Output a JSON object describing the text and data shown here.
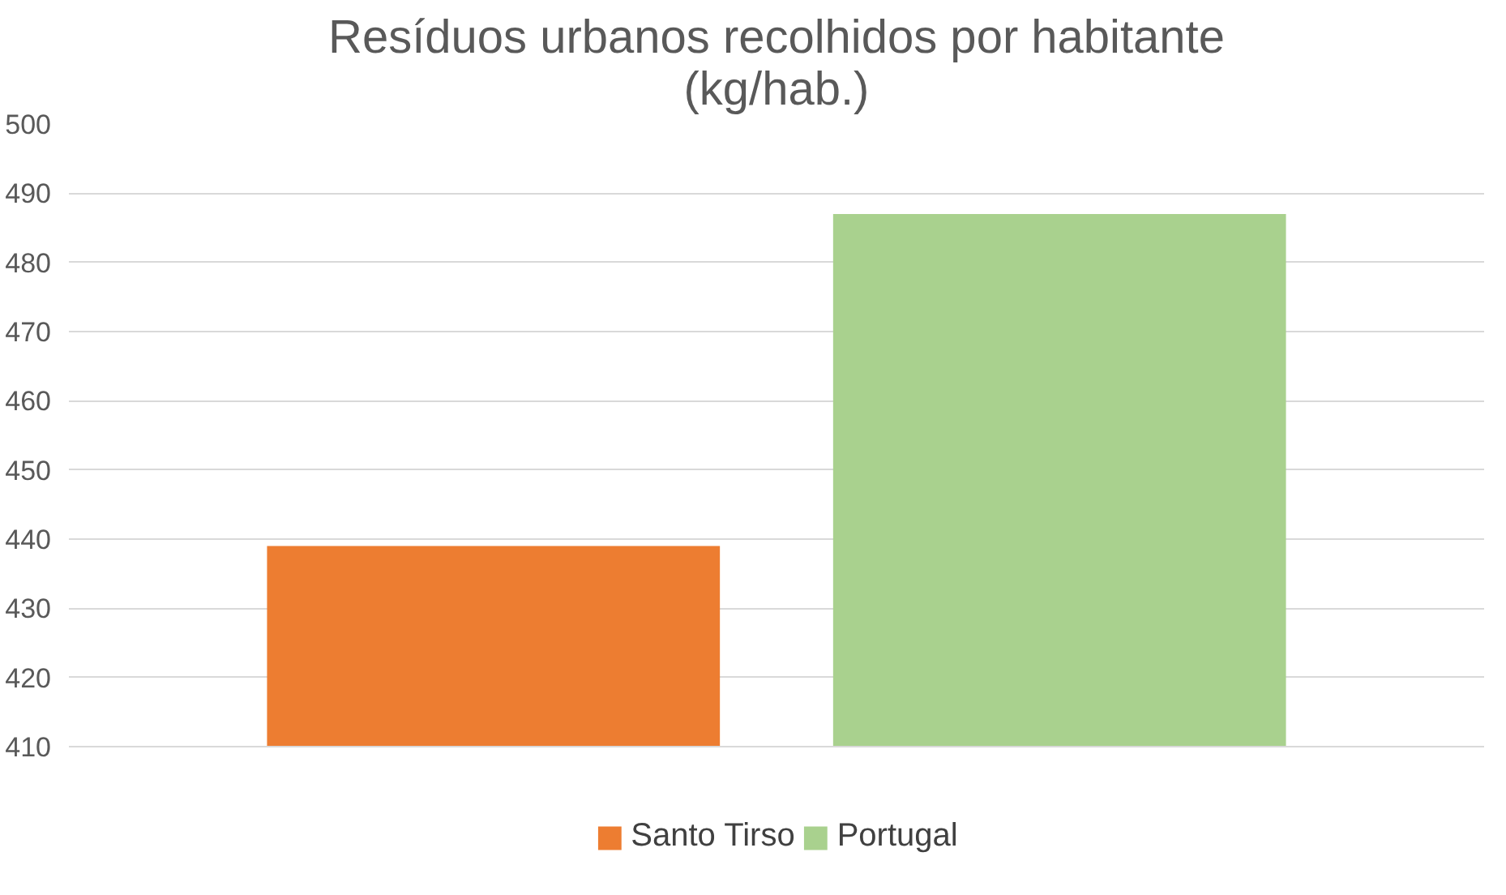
{
  "chart_data": {
    "type": "bar",
    "title": "Resíduos urbanos recolhidos por habitante\n(kg/hab.)",
    "categories": [
      null
    ],
    "series": [
      {
        "name": "Santo Tirso",
        "color": "#ed7d31",
        "values": [
          439
        ]
      },
      {
        "name": "Portugal",
        "color": "#a9d18e",
        "values": [
          487
        ]
      }
    ],
    "ylim": [
      410,
      500
    ],
    "yticks": [
      410,
      420,
      430,
      440,
      450,
      460,
      470,
      480,
      490,
      500
    ],
    "grid": "y",
    "legend": "bottom"
  }
}
